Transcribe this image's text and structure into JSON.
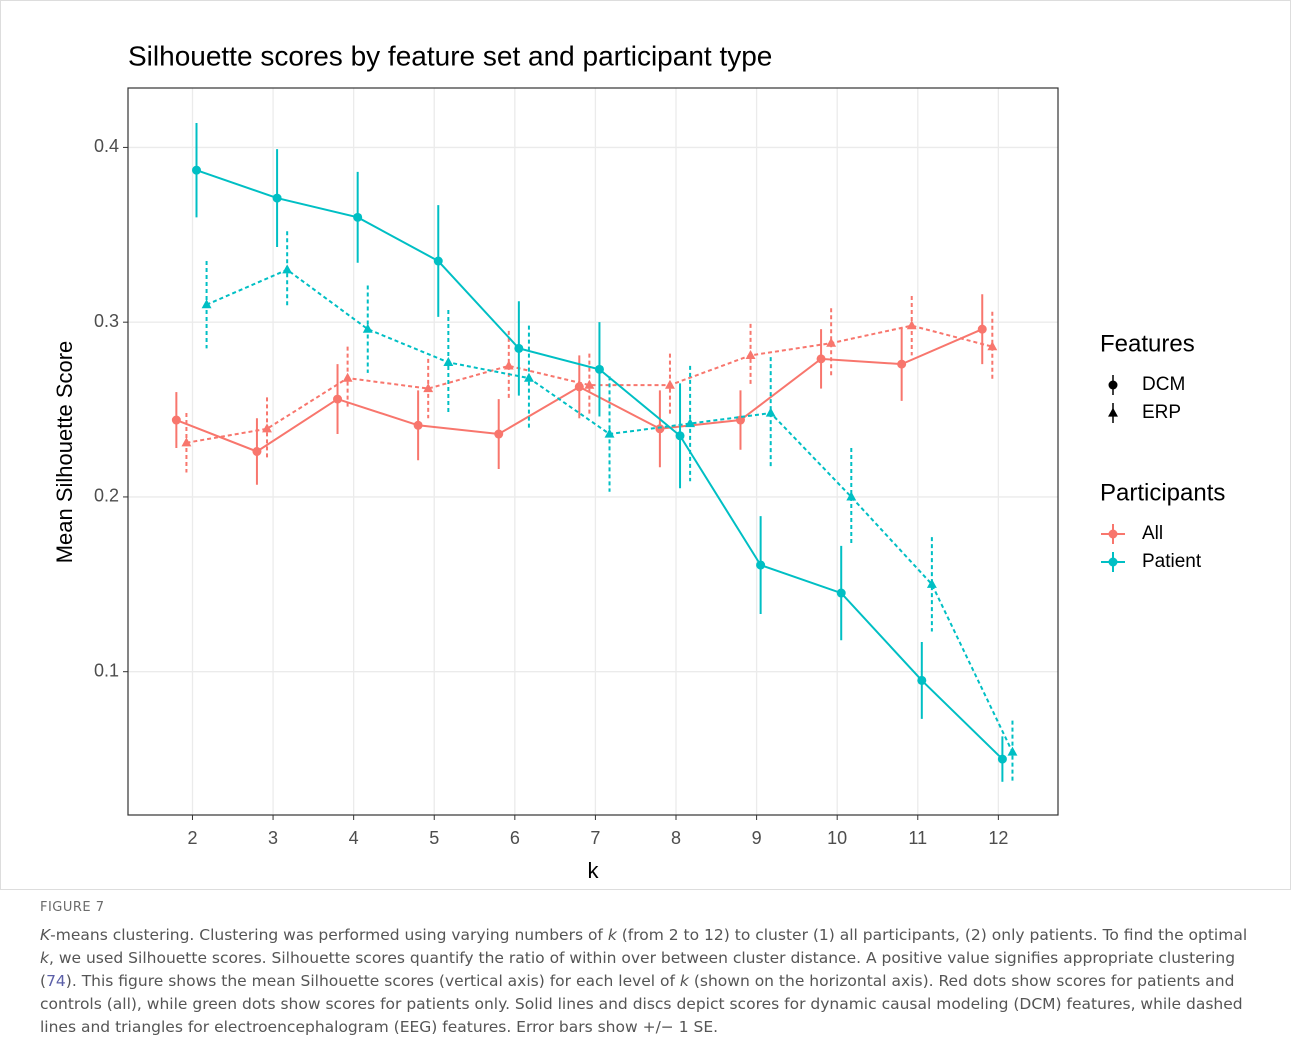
{
  "chart_data": {
    "type": "line",
    "title": "Silhouette scores by feature set and participant type",
    "x_label": "k",
    "y_label": "Mean Silhouette Score",
    "x": [
      2,
      3,
      4,
      5,
      6,
      7,
      8,
      9,
      10,
      11,
      12
    ],
    "xlim": [
      1.2,
      12.74
    ],
    "xticks": [
      2,
      3,
      4,
      5,
      6,
      7,
      8,
      9,
      10,
      11,
      12
    ],
    "ylim": [
      0.018,
      0.434
    ],
    "yticks": [
      0.1,
      0.2,
      0.3,
      0.4
    ],
    "grid": true,
    "legends": [
      {
        "title": "Features",
        "items": [
          {
            "label": "DCM",
            "shape": "circle",
            "dashed": false
          },
          {
            "label": "ERP",
            "shape": "triangle",
            "dashed": true
          }
        ]
      },
      {
        "title": "Participants",
        "items": [
          {
            "label": "All",
            "color": "#F8766D"
          },
          {
            "label": "Patient",
            "color": "#00BFC4"
          }
        ]
      }
    ],
    "series": [
      {
        "feature": 0,
        "participants": 0,
        "values": [
          0.244,
          0.226,
          0.256,
          0.241,
          0.236,
          0.263,
          0.239,
          0.244,
          0.279,
          0.276,
          0.296
        ],
        "errors": [
          0.016,
          0.019,
          0.02,
          0.02,
          0.02,
          0.018,
          0.022,
          0.017,
          0.017,
          0.021,
          0.02
        ]
      },
      {
        "feature": 1,
        "participants": 0,
        "values": [
          0.231,
          0.239,
          0.268,
          0.262,
          0.275,
          0.264,
          0.264,
          0.281,
          0.288,
          0.298,
          0.286
        ],
        "errors": [
          0.017,
          0.018,
          0.018,
          0.017,
          0.02,
          0.018,
          0.018,
          0.018,
          0.02,
          0.017,
          0.02
        ]
      },
      {
        "feature": 0,
        "participants": 1,
        "values": [
          0.387,
          0.371,
          0.36,
          0.335,
          0.285,
          0.273,
          0.235,
          0.161,
          0.145,
          0.095,
          0.05
        ],
        "errors": [
          0.027,
          0.028,
          0.026,
          0.032,
          0.027,
          0.027,
          0.03,
          0.028,
          0.027,
          0.022,
          0.013
        ]
      },
      {
        "feature": 1,
        "participants": 1,
        "values": [
          0.31,
          0.33,
          0.296,
          0.277,
          0.268,
          0.236,
          0.242,
          0.248,
          0.2,
          0.15,
          0.054
        ],
        "errors": [
          0.025,
          0.022,
          0.025,
          0.03,
          0.03,
          0.033,
          0.033,
          0.032,
          0.028,
          0.027,
          0.018
        ]
      }
    ]
  },
  "caption": {
    "label": "FIGURE 7",
    "runs": [
      {
        "text": "K",
        "style": "italic"
      },
      {
        "text": "-means clustering. Clustering was performed using varying numbers of "
      },
      {
        "text": "k",
        "style": "italic"
      },
      {
        "text": " (from 2 to 12) to cluster (1) all participants, (2) only patients. To find the optimal "
      },
      {
        "text": "k",
        "style": "italic"
      },
      {
        "text": ", we used Silhouette scores. Silhouette scores quantify the ratio of within over between cluster distance. A positive value signifies appropriate clustering ("
      },
      {
        "text": "74",
        "style": "link"
      },
      {
        "text": "). This figure shows the mean Silhouette scores (vertical axis) for each level of "
      },
      {
        "text": "k",
        "style": "italic"
      },
      {
        "text": " (shown on the horizontal axis). Red dots show scores for patients and controls (all), while green dots show scores for patients only. Solid lines and discs depict scores for dynamic causal modeling (DCM) features, while dashed lines and triangles for electroencephalogram (EEG) features. Error bars show +/− 1 SE."
      }
    ]
  }
}
